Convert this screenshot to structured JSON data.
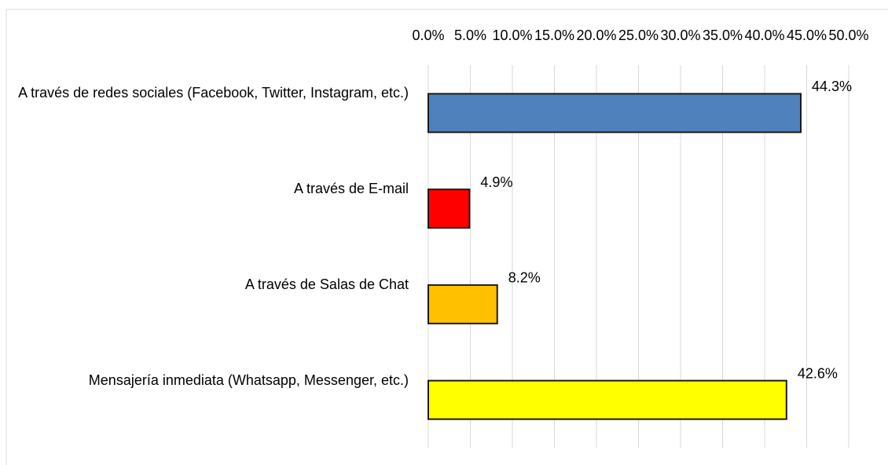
{
  "chart_data": {
    "type": "bar",
    "orientation": "horizontal",
    "categories": [
      "A través de redes sociales (Facebook, Twitter, Instagram, etc.)",
      "A través de E-mail",
      "A través de Salas de Chat",
      "Mensajería inmediata (Whatsapp, Messenger, etc.)"
    ],
    "values": [
      44.3,
      4.9,
      8.2,
      42.6
    ],
    "value_labels": [
      "44.3%",
      "4.9%",
      "8.2%",
      "42.6%"
    ],
    "colors": [
      "#4f81bd",
      "#ff0000",
      "#ffc000",
      "#ffff00"
    ],
    "xlim": [
      0,
      50
    ],
    "xticks": [
      {
        "value": 0,
        "label": "0.0%"
      },
      {
        "value": 5,
        "label": "5.0%"
      },
      {
        "value": 10,
        "label": "10.0%"
      },
      {
        "value": 15,
        "label": "15.0%"
      },
      {
        "value": 20,
        "label": "20.0%"
      },
      {
        "value": 25,
        "label": "25.0%"
      },
      {
        "value": 30,
        "label": "30.0%"
      },
      {
        "value": 35,
        "label": "35.0%"
      },
      {
        "value": 40,
        "label": "40.0%"
      },
      {
        "value": 45,
        "label": "45.0%"
      },
      {
        "value": 50,
        "label": "50.0%"
      }
    ],
    "grid": true
  }
}
